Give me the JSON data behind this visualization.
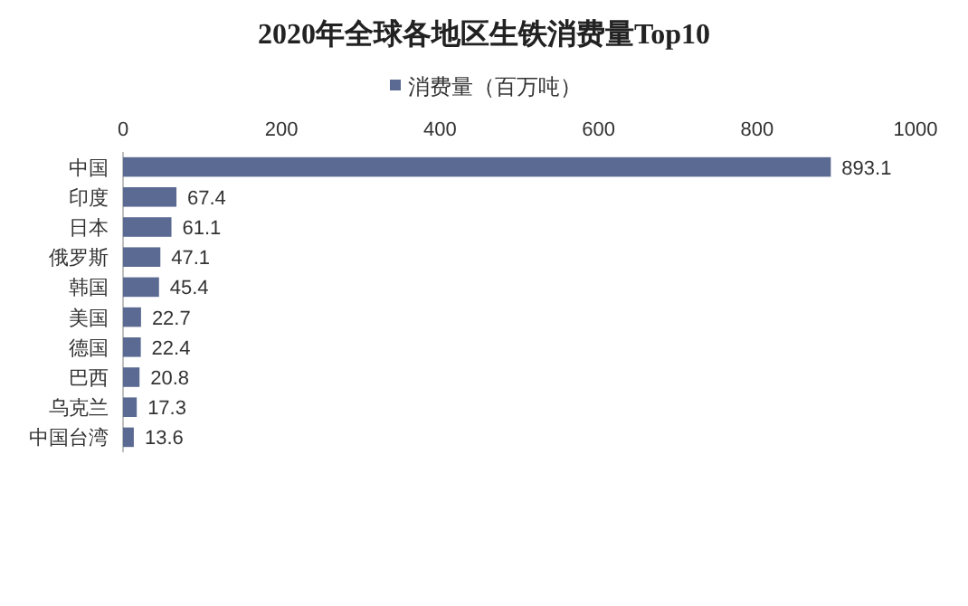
{
  "chart_data": {
    "type": "bar",
    "orientation": "horizontal",
    "title": "2020年全球各地区生铁消费量Top10",
    "categories": [
      "中国",
      "印度",
      "日本",
      "俄罗斯",
      "韩国",
      "美国",
      "德国",
      "巴西",
      "乌克兰",
      "中国台湾"
    ],
    "series": [
      {
        "name": "消费量（百万吨）",
        "color": "#5b6a93",
        "values": [
          893.1,
          67.4,
          61.1,
          47.1,
          45.4,
          22.7,
          22.4,
          20.8,
          17.3,
          13.6
        ]
      }
    ],
    "xlim": [
      0,
      1000
    ],
    "xticks": [
      0,
      200,
      400,
      600,
      800,
      1000
    ],
    "data_labels": true,
    "legend": "top"
  }
}
